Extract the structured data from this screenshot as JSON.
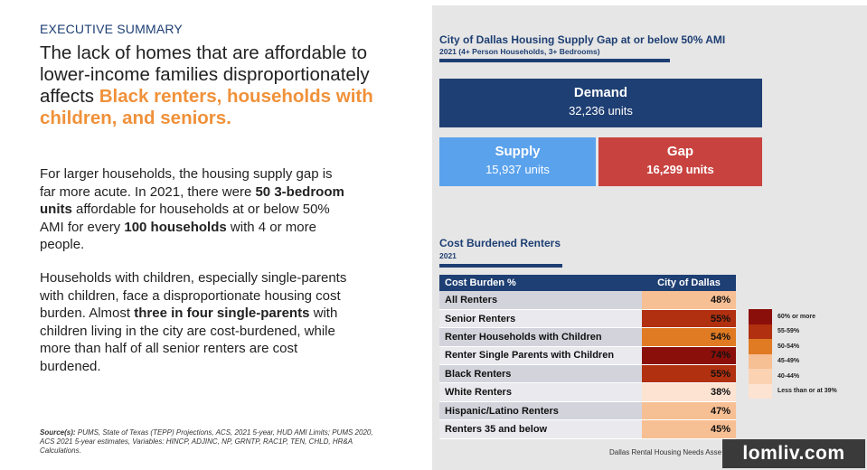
{
  "left": {
    "kicker": "EXECUTIVE SUMMARY",
    "headline_plain": "The lack of homes that are affordable to lower-income families disproportionately affects ",
    "headline_highlight": "Black renters, households with children, and seniors.",
    "para1": {
      "t1": "For larger households, the housing supply gap is far more acute. In 2021, there were ",
      "b1": "50 3-bedroom units",
      "t2": " affordable for households at or below 50% AMI for every ",
      "b2": "100 households",
      "t3": " with 4 or more people."
    },
    "para2": {
      "t1": "Households with children, especially single-parents with children, face a disproportionate housing cost burden. Almost ",
      "b1": "three in four single-parents",
      "t2": " with children living in the city are cost-burdened, while more than half of all senior renters are cost burdened."
    },
    "sources_label": "Source(s):",
    "sources_text": " PUMS, State of Texas (TEPP) Projections, ACS, 2021 5-year, HUD AMI Limits; PUMS 2020, ACS 2021 5-year estimates, Variables: HINCP, ADJINC, NP, GRNTP, RAC1P, TEN, CHLD, HR&A Calculations."
  },
  "supply_gap": {
    "title": "City of Dallas Housing Supply Gap at or below 50% AMI",
    "subtitle": "2021 (4+ Person Households, 3+ Bedrooms)",
    "demand_label": "Demand",
    "demand_value": "32,236 units",
    "supply_label": "Supply",
    "supply_value": "15,937 units",
    "gap_label": "Gap",
    "gap_value": "16,299 units"
  },
  "cost_burden": {
    "title": "Cost Burdened Renters",
    "subtitle": "2021",
    "col1": "Cost Burden %",
    "col2": "City of Dallas",
    "rows": [
      {
        "label": "All Renters",
        "value": "48%",
        "color": "#f7bf94"
      },
      {
        "label": "Senior Renters",
        "value": "55%",
        "color": "#b1300f"
      },
      {
        "label": "Renter Households with Children",
        "value": "54%",
        "color": "#e07b23"
      },
      {
        "label": "Renter Single Parents with Children",
        "value": "74%",
        "color": "#8a0f0a"
      },
      {
        "label": "Black Renters",
        "value": "55%",
        "color": "#b1300f"
      },
      {
        "label": "White Renters",
        "value": "38%",
        "color": "#fde3d1"
      },
      {
        "label": "Hispanic/Latino Renters",
        "value": "47%",
        "color": "#f7bf94"
      },
      {
        "label": "Renters 35 and below",
        "value": "45%",
        "color": "#f7bf94"
      }
    ],
    "legend": [
      {
        "label": "60% or more",
        "color": "#8a0f0a"
      },
      {
        "label": "55-59%",
        "color": "#b1300f"
      },
      {
        "label": "50-54%",
        "color": "#e07b23"
      },
      {
        "label": "45-49%",
        "color": "#f7bf94"
      },
      {
        "label": "40-44%",
        "color": "#fbd3b3"
      },
      {
        "label": "Less than or at 39%",
        "color": "#fde3d1"
      }
    ]
  },
  "footer": "Dallas Rental Housing Needs Asse",
  "watermark": "lomliv.com"
}
